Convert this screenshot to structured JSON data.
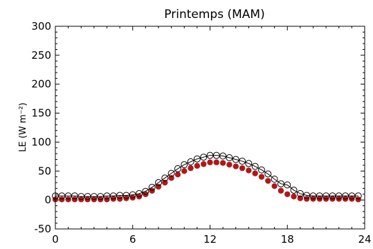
{
  "chart_data": {
    "type": "scatter",
    "title": "Printemps (MAM)",
    "ylabel": "LE (W m⁻²)",
    "xlabel": "",
    "xlim": [
      0,
      24
    ],
    "ylim": [
      -50,
      300
    ],
    "xticks": [
      "0",
      "6",
      "12",
      "18",
      "24"
    ],
    "yticks": [
      "-50",
      "0",
      "50",
      "100",
      "150",
      "200",
      "250",
      "300"
    ],
    "grid": false,
    "colors": {
      "series1": "#000000",
      "series2": "#b01818"
    },
    "series": [
      {
        "marker": "open-circle-with-line",
        "x": [
          0,
          0.5,
          1,
          1.5,
          2,
          2.5,
          3,
          3.5,
          4,
          4.5,
          5,
          5.5,
          6,
          6.5,
          7,
          7.5,
          8,
          8.5,
          9,
          9.5,
          10,
          10.5,
          11,
          11.5,
          12,
          12.5,
          13,
          13.5,
          14,
          14.5,
          15,
          15.5,
          16,
          16.5,
          17,
          17.5,
          18,
          18.5,
          19,
          19.5,
          20,
          20.5,
          21,
          21.5,
          22,
          22.5,
          23,
          23.5
        ],
        "values": [
          7,
          7,
          7,
          7,
          6,
          6,
          6,
          6,
          7,
          7,
          8,
          8,
          9,
          11,
          15,
          22,
          30,
          38,
          46,
          54,
          61,
          66,
          71,
          74,
          77,
          77,
          76,
          73,
          70,
          67,
          63,
          58,
          52,
          45,
          36,
          28,
          26,
          17,
          11,
          8,
          7,
          7,
          7,
          7,
          7,
          7,
          7,
          7
        ]
      },
      {
        "marker": "filled-circle",
        "x": [
          0,
          0.5,
          1,
          1.5,
          2,
          2.5,
          3,
          3.5,
          4,
          4.5,
          5,
          5.5,
          6,
          6.5,
          7,
          7.5,
          8,
          8.5,
          9,
          9.5,
          10,
          10.5,
          11,
          11.5,
          12,
          12.5,
          13,
          13.5,
          14,
          14.5,
          15,
          15.5,
          16,
          16.5,
          17,
          17.5,
          18,
          18.5,
          19,
          19.5,
          20,
          20.5,
          21,
          21.5,
          22,
          22.5,
          23,
          23.5
        ],
        "values": [
          1,
          1,
          1,
          1,
          1,
          1,
          1,
          1,
          1,
          2,
          2,
          3,
          4,
          6,
          10,
          16,
          23,
          30,
          38,
          44,
          50,
          55,
          59,
          62,
          65,
          65,
          64,
          61,
          58,
          55,
          51,
          46,
          40,
          33,
          24,
          16,
          10,
          6,
          3,
          2,
          2,
          2,
          2,
          2,
          2,
          2,
          2,
          1
        ]
      }
    ]
  }
}
